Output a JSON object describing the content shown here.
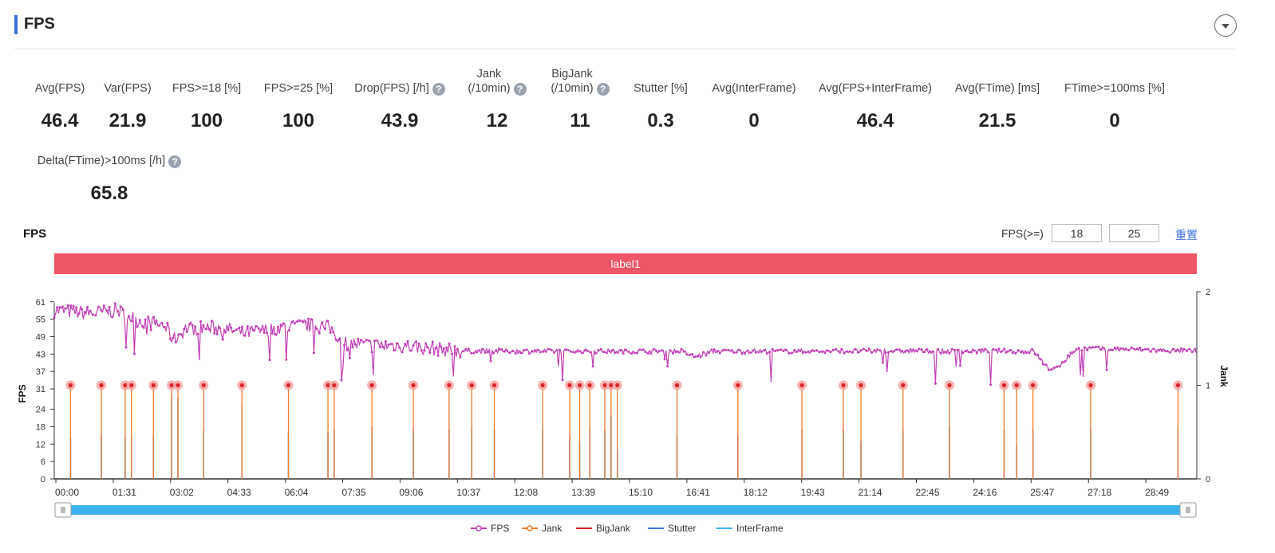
{
  "section": {
    "title": "FPS"
  },
  "metrics_row1": [
    {
      "label": "Avg(FPS)",
      "value": "46.4",
      "help": false
    },
    {
      "label": "Var(FPS)",
      "value": "21.9",
      "help": false
    },
    {
      "label": "FPS>=18 [%]",
      "value": "100",
      "help": false
    },
    {
      "label": "FPS>=25 [%]",
      "value": "100",
      "help": false
    },
    {
      "label": "Drop(FPS) [/h]",
      "value": "43.9",
      "help": true
    },
    {
      "label": "Jank",
      "label2": "(/10min)",
      "value": "12",
      "help": true
    },
    {
      "label": "BigJank",
      "label2": "(/10min)",
      "value": "11",
      "help": true
    },
    {
      "label": "Stutter [%]",
      "value": "0.3",
      "help": false
    },
    {
      "label": "Avg(InterFrame)",
      "value": "0",
      "help": false
    },
    {
      "label": "Avg(FPS+InterFrame)",
      "value": "46.4",
      "help": false
    },
    {
      "label": "Avg(FTime) [ms]",
      "value": "21.5",
      "help": false
    },
    {
      "label": "FTime>=100ms [%]",
      "value": "0",
      "help": false
    }
  ],
  "metrics_row2": [
    {
      "label": "Delta(FTime)>100ms [/h]",
      "value": "65.8",
      "help": true
    }
  ],
  "chart_header": {
    "title": "FPS",
    "threshold_label": "FPS(>=)",
    "threshold_low": "18",
    "threshold_high": "25",
    "reset_label": "重置"
  },
  "label_band": "label1",
  "chart_data": {
    "type": "line",
    "ylabel": "FPS",
    "y2label": "Jank",
    "y_ticks": [
      0,
      6,
      12,
      18,
      24,
      31,
      37,
      43,
      49,
      55,
      61
    ],
    "ylim": [
      0,
      61
    ],
    "y2_ticks": [
      0,
      1,
      2
    ],
    "y2lim": [
      0,
      2
    ],
    "x_ticks": [
      "00:00",
      "01:31",
      "03:02",
      "04:33",
      "06:04",
      "07:35",
      "09:06",
      "10:37",
      "12:08",
      "13:39",
      "15:10",
      "16:41",
      "18:12",
      "19:43",
      "21:14",
      "22:45",
      "24:16",
      "25:47",
      "27:18",
      "28:49"
    ],
    "x_range_seconds": [
      0,
      1820
    ],
    "legend": [
      {
        "name": "FPS",
        "color": "#c23fb8"
      },
      {
        "name": "Jank",
        "color": "#f07a2a"
      },
      {
        "name": "BigJank",
        "color": "#d9262b"
      },
      {
        "name": "Stutter",
        "color": "#3a7bd5"
      },
      {
        "name": "InterFrame",
        "color": "#3cb4e8"
      }
    ],
    "fps_profile": [
      [
        0,
        58
      ],
      [
        60,
        57
      ],
      [
        100,
        58
      ],
      [
        140,
        54
      ],
      [
        175,
        53
      ],
      [
        190,
        48
      ],
      [
        210,
        52
      ],
      [
        270,
        52
      ],
      [
        300,
        50
      ],
      [
        330,
        51
      ],
      [
        360,
        52
      ],
      [
        400,
        53
      ],
      [
        440,
        52
      ],
      [
        460,
        47
      ],
      [
        500,
        46
      ],
      [
        550,
        46
      ],
      [
        600,
        45
      ],
      [
        650,
        44
      ],
      [
        1000,
        44
      ],
      [
        1020,
        42
      ],
      [
        1050,
        44
      ],
      [
        1250,
        44
      ],
      [
        1400,
        44
      ],
      [
        1450,
        44
      ],
      [
        1560,
        44
      ],
      [
        1575,
        40
      ],
      [
        1590,
        37
      ],
      [
        1600,
        39
      ],
      [
        1630,
        45
      ],
      [
        1820,
        44
      ]
    ],
    "jank_events_seconds": [
      26,
      75,
      113,
      123,
      158,
      187,
      197,
      238,
      299,
      373,
      436,
      446,
      506,
      572,
      629,
      665,
      701,
      778,
      821,
      837,
      853,
      877,
      887,
      897,
      992,
      1089,
      1191,
      1257,
      1285,
      1352,
      1426,
      1513,
      1533,
      1559,
      1651,
      1790
    ],
    "jank_value": 1,
    "stutter_events_seconds": [
      26,
      75,
      113,
      123,
      158,
      187,
      197,
      238,
      299,
      373,
      436,
      446,
      506,
      572,
      629,
      665,
      701,
      778,
      821,
      837,
      853,
      877,
      887,
      897,
      992,
      1089,
      1191,
      1257,
      1285,
      1352,
      1426,
      1513,
      1533,
      1559,
      1651,
      1790
    ],
    "stutter_heights_fps": [
      14,
      15,
      14,
      15,
      15,
      29,
      28,
      17,
      25,
      16,
      16,
      17,
      18,
      17,
      17,
      18,
      17,
      17,
      15,
      12,
      17,
      17,
      22,
      10,
      15,
      15,
      17,
      17,
      13,
      17,
      18,
      17,
      12,
      17,
      17,
      17
    ]
  }
}
